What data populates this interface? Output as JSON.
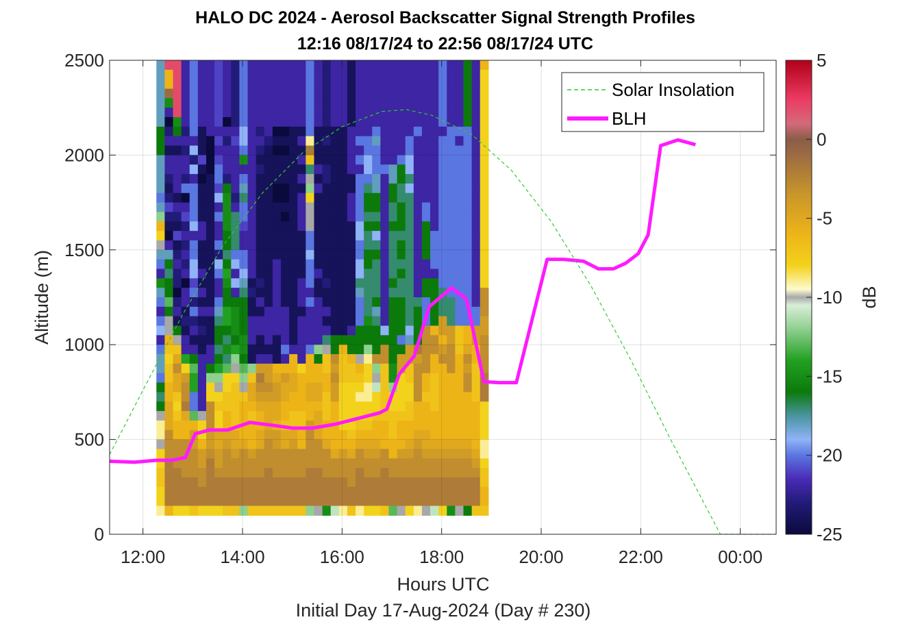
{
  "chart_data": {
    "type": "heatmap",
    "title": "HALO DC 2024 - Aerosol Backscatter Signal Strength Profiles",
    "subtitle": "12:16 08/17/24 to 22:56 08/17/24  UTC",
    "xlabel": "Hours UTC",
    "ylabel": "Altitude (m)",
    "footer": "Initial Day 17-Aug-2024 (Day # 230)",
    "xlim": [
      11.33,
      24.72
    ],
    "ylim": [
      0,
      2500
    ],
    "x_ticks": [
      12,
      14,
      16,
      18,
      20,
      22,
      24
    ],
    "x_tick_labels": [
      "12:00",
      "14:00",
      "16:00",
      "18:00",
      "20:00",
      "22:00",
      "00:00"
    ],
    "y_ticks": [
      0,
      500,
      1000,
      1500,
      2000,
      2500
    ],
    "y_tick_labels": [
      "0",
      "500",
      "1000",
      "1500",
      "2000",
      "2500"
    ],
    "grid": true,
    "colorbar": {
      "label": "dB",
      "range": [
        -25,
        5
      ],
      "ticks": [
        5,
        0,
        -5,
        -10,
        -15,
        -20,
        -25
      ],
      "tick_labels": [
        "5",
        "0",
        "-5",
        "-10",
        "-15",
        "-20",
        "-25"
      ],
      "stops": [
        {
          "v": -25,
          "color": "#0a0a3c"
        },
        {
          "v": -23,
          "color": "#221b78"
        },
        {
          "v": -21.5,
          "color": "#4a2ab8"
        },
        {
          "v": -20,
          "color": "#5a76e0"
        },
        {
          "v": -19,
          "color": "#8fb3f7"
        },
        {
          "v": -17.5,
          "color": "#4a94a0"
        },
        {
          "v": -16,
          "color": "#0b7a0b"
        },
        {
          "v": -14,
          "color": "#22a022"
        },
        {
          "v": -12,
          "color": "#8fd08f"
        },
        {
          "v": -10.5,
          "color": "#d9eed9"
        },
        {
          "v": -10,
          "color": "#a8a8a8"
        },
        {
          "v": -9.5,
          "color": "#fdfbd0"
        },
        {
          "v": -8,
          "color": "#f3d21c"
        },
        {
          "v": -6,
          "color": "#edb418"
        },
        {
          "v": -3.5,
          "color": "#c9962a"
        },
        {
          "v": -1,
          "color": "#9c6b42"
        },
        {
          "v": 0,
          "color": "#8a5d48"
        },
        {
          "v": 1,
          "color": "#d46a7a"
        },
        {
          "v": 2.5,
          "color": "#ec3c64"
        },
        {
          "v": 5,
          "color": "#b00018"
        }
      ]
    },
    "heatmap": {
      "x_start": 12.27,
      "x_step": 0.1667,
      "y_bins_top": [
        2500,
        2450,
        2400,
        2350,
        2300,
        2250,
        2200,
        2150,
        2100,
        2050,
        2000,
        1950,
        1900,
        1850,
        1800,
        1750,
        1700,
        1650,
        1600,
        1550,
        1500,
        1450,
        1400,
        1350,
        1300,
        1250,
        1200,
        1150,
        1100,
        1050,
        1000,
        950,
        900,
        850,
        800,
        750,
        700,
        650,
        600,
        550,
        500,
        450,
        400,
        350,
        300,
        250,
        200,
        150
      ],
      "y_bin_height": 50,
      "profiles": [
        "BCCCBBBBAB-12-6-8-10-18-20-22-15-18-20-22-20-19-22-20-18-18-20-16-17-16-10-9-9-10-8-8-7-7-8-8-9",
        "2-6-6-1-15-22-25-23-22-24-22-22-23-24-23-21-23-24-25-22-18-16-17-16-16-13-16-10-10-6-7-8-7-7-6-6-5-5-5-3-3-3-2-2-2-2-2-6",
        "2-15-16-22-24-22-22-22-22-24-22-23-24-21-24-23-22-23-23-25-23-22-24-16-10-7-5-3-5-5-7-8-7-6-6-3-3-3-2-2-2-2-8",
        "-22-23-22-23-22-22-23-20-25-22-21-23-22-23-22-23-22-25-22-22-24-23-24-22-22-14-8-4-3-3-2-5-6-6-3-3-3-3-2-2-2-8",
        "-20-22-19-23-19-22-20-20-20-20-19-22-20-20-19-19-21-20-23-20-23-22-24-22-16-13-14-14-20-20-13-6-4-4-3-3-3-2-2-2-7",
        "-22-24-24-24-21-24-25-24-24-24-24-22-22-24-24-24-22-24-22-24-22-24-23-24-24-22-22-22-22-22-22-10-8-8-6-4-4-3-3-2-2-8",
        "-22-25-25-25-25-24-24-24-24-24-24-24-24-24-24-24-24-24-24-22-24-24-24-22-22-16-12-8-8-3-3-3-4-4-3-2-2-2-2-2-8",
        "-21-22-21-22-21-20-20-21-19-22-20-22-22-20-23-19-20-22-22-20-18-17-16-16-17-16-14-12-10-8-7-8-8-5-5-4-4-3-2-2-2-8",
        "-22-25-22-23-22-22-22-23-16-15-15-15-15-16-16-17-16-14-15-16-16-14-14-16-17-15-17-13-8-8-7-7-6-6-5-4-3-3-3-2-2-2-7",
        "-23-22-21-22-22-22-22-22-23-22-17-17-17-17-20-19-22-19-22-16-15-15-15-16-14-12-10-8-7-7-7-7-7-5-5-4-3-3-2-2-2-7",
        "-20-19-19-20-15-22-20-18-17-20-20-21-22-22-20-20-19-18-17-16-16-16-16-15-15-16-13-12-10-7-6-6-6-6-5-3-3-3-2-2-2-12",
        "-22-22-22-22-22-22-22-22-22-22-22-22-22-22-22-22-24-23-24-24-22-22-22-24-24-12-7-5-5-6-7-6-6-6-4-3-3-2-2-2-7",
        "-22-23-22-23-24-23-24-24-24-24-24-24-24-24-24-24-24-23-24-22-24-22-22-24-24-22-4-2-3-4-5-6-6-5-5-3-3-3-2-2-2-7",
        "-22-22-23-24-24-24-24-24-24-24-24-24-24-24-24-24-24-24-24-24-22-22-22-22-24-22-4-4-3-4-5-5-5-4-3-3-3-2-2-2-2-7",
        "-22-25-24-25-24-24-24-25-25-24-24-24-24-24-24-22-22-22-22-22-22-22-22-24-24-24-6-5-4-4-5-5-6-4-4-3-3-3-2-2-2-7",
        "-22-25-24-25-24-24-24-25-25-24-25-24-24-24-24-24-24-24-24-24-22-22-22-22-20-22-6-4-5-5-6-6-7-5-5-3-3-3-2-2-2-7",
        "-22-24-24-24-24-24-24-24-24-24-24-24-24-24-24-24-24-24-24-24-24-24-24-24-22-6-6-5-5-6-6-7-7-5-4-3-3-3-2-2-2-7",
        "-22-24-22-24-22-24-22-24-22-22-22-22-24-24-24-24-24-22-22-22-24-22-22-22-22-22-8-6-6-6-6-7-7-6-6-3-3-3-2-2-2-7",
        "-20-9-2-7-17-10-12-8-10-10-10-20-20-19-20-20-20-22-20-22-22-22-22-20-6-6-6-5-5-6-6-4-3-3-3-3-2-2-2-2-12",
        "-22-24-24-24-24-22-24-22-24-24-24-24-24-24-24-24-22-24-24-22-22-22-22-22-12-16-6-6-5-5-6-5-5-5-3-3-3-2-2-2-2-10",
        "-23-24-23-24-24-23-23-24-24-24-24-24-24-24-24-24-24-23-24-24-22-24-22-17-10-7-7-6-6-7-7-7-6-6-5-3-3-3-2-2-2-15",
        "-22-24-24-24-24-24-24-24-24-24-24-24-24-24-24-24-24-24-24-24-24-24-24-16-16-3-4-3-4-4-6-6-6-6-6-5-3-3-2-2-2-11",
        "-22-24-24-24-24-24-24-24-24-24-24-24-24-24-24-24-24-24-24-24-24-24-24-16-6-7-7-7-8-8-8-8-8-6-6-4-3-3-2-2-2-9",
        "-24-22-22-22-22-22-24-24-22-22-22-24-24-24-24-24-24-24-24-24-24-24-22-16-16-6-7-7-8-8-8-8-8-7-6-5-3-3-3-2-2-7",
        "-22-22-20-22-20-22-20-20-20-20-20-19-19-20-20-19-19-17-18-20-20-20-16-16-16-10-6-7-8-9-8-8-7-6-5-3-3-2-2-2-2-9",
        "-22-20-20-19-19-20-17-16-16-17-16-17-17-16-16-17-17-17-17-17-15-16-16-12-9-8-8-9-9-8-8-7-6-5-4-3-3-2-2-2-8",
        "-22-20-18-20-20-20-18-18-16-16-17-16-19-17-16-17-17-17-17-16-18-17-16-16-16-3-12-10-11-8-8-7-6-6-5-4-3-3-2-2-2-8",
        "-22-22-22-22-22-20-22-22-22-22-22-22-22-22-22-22-22-22-22-22-22-22-19-16-3-3-7-7-7-7-7-7-6-6-6-3-3-2-2-2-2-7",
        "-22-22-22-22-22-18-18-16-16-17-17-16-17-17-17-17-17-16-17-16-16-16-16-16-16-16-15-15-12-8-8-7-7-7-6-6-3-3-2-2-2-13",
        "-22-22-22-22-20-16-16-17-17-16-16-16-17-16-16-17-16-17-17-16-16-16-16-20-16-4-4-8-8-8-8-7-6-6-6-4-3-3-2-2-2-10",
        "-22-22-20-20-19-19-17-19-17-17-17-17-17-17-17-17-17-17-17-17-17-17-19-18-4-4-7-7-8-8-7-7-6-6-5-4-3-3-2-2-2-8",
        "-22-20-22-22-22-22-22-22-22-22-22-22-22-22-22-22-22-22-22-17-16-16-16-16-2-4-3-3-3-3-6-6-6-5-4-3-3-3-2-2-2-9",
        "-22-22-22-22-22-22-22-22-22-20-20-16-16-16-16-22-22-16-16-20-20-20-3-3-3-3-3-6-6-7-6-6-6-5-5-4-3-3-2-2-2-10",
        "-22-22-22-22-22-22-22-22-22-22-22-22-20-20-20-20-22-16-16-16-16-16-6-3-3-6-6-7-7-7-7-6-6-6-5-4-3-3-2-2-2-11",
        "-20-22-20-20-20-20-20-20-20-20-20-20-20-20-20-20-20-20-17-17-17-4-4-6-4-3-6-6-6-6-6-6-6-6-5-4-3-3-2-2-2-8",
        "-22-20-20-20-20-20-20-20-20-20-20-20-20-20-20-20-20-20-20-17-17-17-4-4-3-3-3-6-6-6-6-6-6-6-5-4-3-3-2-2-2-15",
        "-22-20-22-20-20-20-20-20-20-20-20-20-20-20-20-20-20-20-20-20-20-20-7-7-7-6-6-6-6-6-6-6-6-6-5-4-3-3-2-2-2-10",
        "-16-20-20-20-20-20-20-20-20-20-20-20-20-20-20-20-20-20-20-20-20-20-6-6-5-3-4-3-3-6-6-6-6-6-5-4-3-3-2-2-2-16",
        "-22-22-22-22-22-22-22-22-22-22-22-22-22-22-22-22-22-22-22-22-20-20-4-4-6-6-7-7-7-7-6-6-6-6-6-5-4-3-2-2-2-7",
        "-6-8-8-8-8-8-8-8-8-8-8-8-8-8-8-8-8-8-8-8-8-8-8-8-3-3-3-4-4-3-3-3-3-2-2-2-8-8-8-8-9-9-8-7-7-6-6-7"
      ]
    },
    "series": [
      {
        "name": "BLH",
        "x": [
          11.33,
          11.83,
          12.27,
          12.58,
          12.85,
          13.05,
          13.33,
          13.7,
          14.15,
          14.6,
          15.0,
          15.4,
          15.85,
          16.3,
          16.75,
          16.9,
          17.15,
          17.45,
          17.75,
          18.2,
          18.5,
          18.85,
          19.15,
          19.5,
          20.12,
          20.45,
          20.85,
          21.15,
          21.45,
          21.7,
          21.95,
          22.15,
          22.4,
          22.75,
          23.1
        ],
        "y": [
          385,
          380,
          390,
          390,
          405,
          530,
          550,
          550,
          590,
          575,
          560,
          560,
          580,
          610,
          640,
          660,
          845,
          940,
          1200,
          1300,
          1240,
          805,
          800,
          800,
          1450,
          1450,
          1440,
          1400,
          1400,
          1430,
          1480,
          1580,
          2050,
          2080,
          2055
        ]
      },
      {
        "name": "Solar Insolation",
        "x": [
          11.33,
          12.0,
          12.8,
          13.6,
          14.4,
          15.2,
          16.0,
          16.8,
          17.3,
          17.8,
          18.6,
          19.4,
          20.2,
          21.0,
          21.8,
          22.6,
          23.2,
          23.6,
          24.0,
          24.72
        ],
        "y": [
          420,
          760,
          1160,
          1520,
          1800,
          2010,
          2150,
          2230,
          2240,
          2210,
          2110,
          1920,
          1650,
          1310,
          920,
          500,
          200,
          0,
          0,
          0
        ]
      }
    ],
    "legend": {
      "placement": "top-right",
      "entries": [
        "Solar Insolation",
        "BLH"
      ]
    },
    "series_colors": {
      "BLH": "#ff1aff",
      "Solar Insolation": "#2ecc2e"
    }
  }
}
